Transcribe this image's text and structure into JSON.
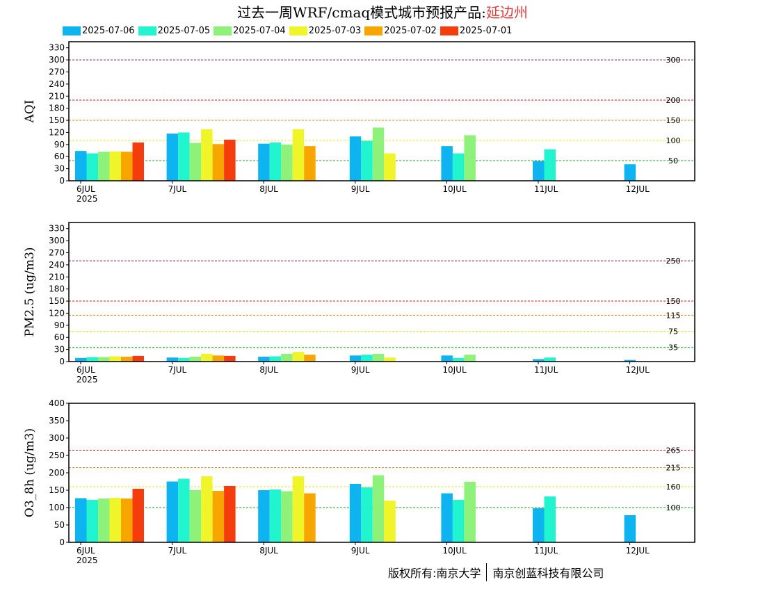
{
  "title": {
    "prefix": "过去一周WRF/cmaq模式城市预报产品:",
    "city": "延边州"
  },
  "legend": [
    {
      "label": "2025-07-06",
      "color": "#0db4f0"
    },
    {
      "label": "2025-07-05",
      "color": "#21f5cf"
    },
    {
      "label": "2025-07-04",
      "color": "#8ef27a"
    },
    {
      "label": "2025-07-03",
      "color": "#f0f52a"
    },
    {
      "label": "2025-07-02",
      "color": "#f7a600"
    },
    {
      "label": "2025-07-01",
      "color": "#f53c0d"
    }
  ],
  "footer": {
    "left": "版权所有:南京大学",
    "right": "南京创蓝科技有限公司"
  },
  "chart_data": [
    {
      "type": "bar",
      "ylabel": "AQI",
      "ylim": [
        0,
        345
      ],
      "yticks": [
        0,
        30,
        60,
        90,
        120,
        150,
        180,
        210,
        240,
        270,
        300,
        330
      ],
      "categories": [
        "6JUL",
        "7JUL",
        "8JUL",
        "9JUL",
        "10JUL",
        "11JUL",
        "12JUL"
      ],
      "first_category_sublabel": "2025",
      "grid": false,
      "legend_position": "top",
      "reference_lines": [
        {
          "value": 300,
          "label": "300",
          "color": "#8b1a4a"
        },
        {
          "value": 200,
          "label": "200",
          "color": "#cc1a1a"
        },
        {
          "value": 150,
          "label": "150",
          "color": "#e08a1a"
        },
        {
          "value": 100,
          "label": "100",
          "color": "#e6e62a"
        },
        {
          "value": 50,
          "label": "50",
          "color": "#1aa81a"
        }
      ],
      "series": [
        {
          "name": "2025-07-06",
          "values": [
            74,
            117,
            92,
            110,
            86,
            49,
            41
          ]
        },
        {
          "name": "2025-07-05",
          "values": [
            68,
            120,
            95,
            99,
            68,
            78,
            null
          ]
        },
        {
          "name": "2025-07-04",
          "values": [
            72,
            94,
            90,
            132,
            113,
            null,
            null
          ]
        },
        {
          "name": "2025-07-03",
          "values": [
            73,
            128,
            128,
            68,
            null,
            null,
            null
          ]
        },
        {
          "name": "2025-07-02",
          "values": [
            72,
            91,
            86,
            null,
            null,
            null,
            null
          ]
        },
        {
          "name": "2025-07-01",
          "values": [
            95,
            102,
            null,
            null,
            null,
            null,
            null
          ]
        }
      ]
    },
    {
      "type": "bar",
      "ylabel": "PM2.5 (ug/m3)",
      "ylim": [
        0,
        345
      ],
      "yticks": [
        0,
        30,
        60,
        90,
        120,
        150,
        180,
        210,
        240,
        270,
        300,
        330
      ],
      "categories": [
        "6JUL",
        "7JUL",
        "8JUL",
        "9JUL",
        "10JUL",
        "11JUL",
        "12JUL"
      ],
      "first_category_sublabel": "2025",
      "grid": false,
      "reference_lines": [
        {
          "value": 250,
          "label": "250",
          "color": "#8b1a4a"
        },
        {
          "value": 150,
          "label": "150",
          "color": "#cc1a1a"
        },
        {
          "value": 115,
          "label": "115",
          "color": "#e08a1a"
        },
        {
          "value": 75,
          "label": "75",
          "color": "#e6e62a"
        },
        {
          "value": 35,
          "label": "35",
          "color": "#1aa81a"
        }
      ],
      "series": [
        {
          "name": "2025-07-06",
          "values": [
            9,
            10,
            12,
            15,
            15,
            6,
            4
          ]
        },
        {
          "name": "2025-07-05",
          "values": [
            11,
            9,
            13,
            17,
            9,
            10,
            null
          ]
        },
        {
          "name": "2025-07-04",
          "values": [
            11,
            12,
            19,
            19,
            17,
            null,
            null
          ]
        },
        {
          "name": "2025-07-03",
          "values": [
            13,
            19,
            24,
            10,
            null,
            null,
            null
          ]
        },
        {
          "name": "2025-07-02",
          "values": [
            12,
            15,
            17,
            null,
            null,
            null,
            null
          ]
        },
        {
          "name": "2025-07-01",
          "values": [
            14,
            14,
            null,
            null,
            null,
            null,
            null
          ]
        }
      ]
    },
    {
      "type": "bar",
      "ylabel": "O3_8h (ug/m3)",
      "ylim": [
        0,
        400
      ],
      "yticks": [
        0,
        50,
        100,
        150,
        200,
        250,
        300,
        350,
        400
      ],
      "categories": [
        "6JUL",
        "7JUL",
        "8JUL",
        "9JUL",
        "10JUL",
        "11JUL",
        "12JUL"
      ],
      "first_category_sublabel": "2025",
      "grid": false,
      "reference_lines": [
        {
          "value": 265,
          "label": "265",
          "color": "#cc1a1a"
        },
        {
          "value": 215,
          "label": "215",
          "color": "#e08a1a"
        },
        {
          "value": 160,
          "label": "160",
          "color": "#e6e62a"
        },
        {
          "value": 100,
          "label": "100",
          "color": "#1aa81a"
        }
      ],
      "series": [
        {
          "name": "2025-07-06",
          "values": [
            127,
            175,
            150,
            168,
            141,
            98,
            78
          ]
        },
        {
          "name": "2025-07-05",
          "values": [
            122,
            183,
            152,
            158,
            122,
            132,
            null
          ]
        },
        {
          "name": "2025-07-04",
          "values": [
            126,
            150,
            147,
            193,
            174,
            null,
            null
          ]
        },
        {
          "name": "2025-07-03",
          "values": [
            128,
            190,
            190,
            120,
            null,
            null,
            null
          ]
        },
        {
          "name": "2025-07-02",
          "values": [
            126,
            148,
            141,
            null,
            null,
            null,
            null
          ]
        },
        {
          "name": "2025-07-01",
          "values": [
            154,
            162,
            null,
            null,
            null,
            null,
            null
          ]
        }
      ]
    }
  ]
}
